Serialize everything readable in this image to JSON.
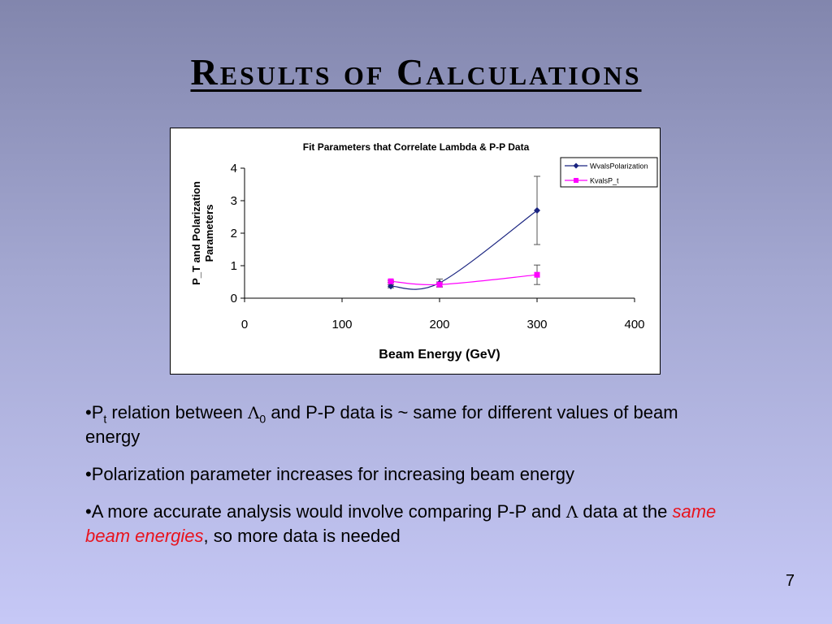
{
  "slide": {
    "title": "Results of Calculations",
    "page_number": "7"
  },
  "bullets": [
    {
      "prefix": "•P",
      "sub1": "t",
      "text1": " relation between ",
      "lambda": "Λ",
      "sub2": "0",
      "text2": " and P-P data is ~ same for different values of beam energy"
    },
    {
      "text": "•Polarization parameter increases for increasing beam energy"
    },
    {
      "text1": "•A more accurate analysis would involve comparing P-P and ",
      "lambda": "Λ",
      "text2": " data at the ",
      "emph": "same beam energies",
      "text3": ", so more data is needed"
    }
  ],
  "chart_data": {
    "type": "line",
    "title": "Fit Parameters that Correlate Lambda & P-P Data",
    "xlabel": "Beam Energy (GeV)",
    "ylabel": "P_T and Polarization Parameters",
    "xlim": [
      0,
      400
    ],
    "ylim": [
      0,
      4
    ],
    "xticks": [
      0,
      100,
      200,
      300,
      400
    ],
    "yticks": [
      0,
      1,
      2,
      3,
      4
    ],
    "grid": false,
    "legend_position": "top-right",
    "series": [
      {
        "name": "WvalsPolarization",
        "color": "#1a2480",
        "marker": "diamond",
        "x": [
          150,
          200,
          300
        ],
        "y": [
          0.37,
          0.47,
          2.7
        ],
        "yerr": [
          0.05,
          0.12,
          1.05
        ]
      },
      {
        "name": "KvalsP_t",
        "color": "#ff00ff",
        "marker": "square",
        "x": [
          150,
          200,
          300
        ],
        "y": [
          0.52,
          0.42,
          0.72
        ],
        "yerr": [
          0.03,
          0.08,
          0.3
        ]
      }
    ]
  }
}
